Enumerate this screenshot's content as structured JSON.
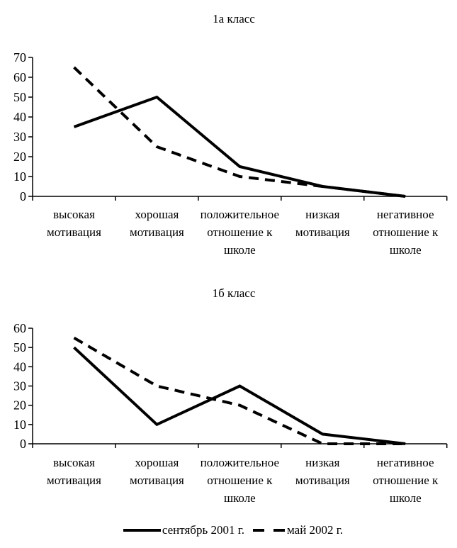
{
  "colors": {
    "foreground": "#000000",
    "background": "#ffffff"
  },
  "chart_data": [
    {
      "type": "line",
      "title": "1а класс",
      "categories": [
        "высокая мотивация",
        "хорошая мотивация",
        "положительное отношение к школе",
        "низкая мотивация",
        "негативное отношение к школе"
      ],
      "category_label_lines": [
        [
          "высокая",
          "мотивация"
        ],
        [
          "хорошая",
          "мотивация"
        ],
        [
          "положительное",
          "отношение к",
          "школе"
        ],
        [
          "низкая",
          "мотивация"
        ],
        [
          "негативное",
          "отношение к",
          "школе"
        ]
      ],
      "series": [
        {
          "name": "сентябрь 2001 г.",
          "style": "solid",
          "color": "#000000",
          "values": [
            35,
            50,
            15,
            5,
            0
          ]
        },
        {
          "name": "май 2002 г.",
          "style": "dashed",
          "color": "#000000",
          "values": [
            65,
            25,
            10,
            5,
            0
          ]
        }
      ],
      "ylim": [
        0,
        70
      ],
      "yticks": [
        0,
        10,
        20,
        30,
        40,
        50,
        60,
        70
      ],
      "xlabel": "",
      "ylabel": "",
      "grid": false,
      "legend_position": "shared-bottom"
    },
    {
      "type": "line",
      "title": "1б класс",
      "categories": [
        "высокая мотивация",
        "хорошая мотивация",
        "положительное отношение к школе",
        "низкая мотивация",
        "негативное отношение к школе"
      ],
      "category_label_lines": [
        [
          "высокая",
          "мотивация"
        ],
        [
          "хорошая",
          "мотивация"
        ],
        [
          "положительное",
          "отношение к",
          "школе"
        ],
        [
          "низкая",
          "мотивация"
        ],
        [
          "негативное",
          "отношение к",
          "школе"
        ]
      ],
      "series": [
        {
          "name": "сентябрь 2001 г.",
          "style": "solid",
          "color": "#000000",
          "values": [
            50,
            10,
            30,
            5,
            0
          ]
        },
        {
          "name": "май 2002 г.",
          "style": "dashed",
          "color": "#000000",
          "values": [
            55,
            30,
            20,
            0,
            0
          ]
        }
      ],
      "ylim": [
        0,
        60
      ],
      "yticks": [
        0,
        10,
        20,
        30,
        40,
        50,
        60
      ],
      "xlabel": "",
      "ylabel": "",
      "grid": false,
      "legend_position": "shared-bottom"
    }
  ],
  "legend": {
    "items": [
      {
        "label": "сентябрь 2001 г.",
        "style": "solid"
      },
      {
        "label": "май 2002 г.",
        "style": "dashed"
      }
    ]
  }
}
